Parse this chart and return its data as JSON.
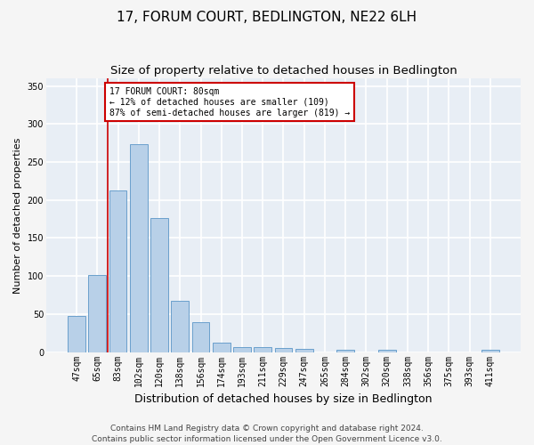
{
  "title": "17, FORUM COURT, BEDLINGTON, NE22 6LH",
  "subtitle": "Size of property relative to detached houses in Bedlington",
  "xlabel": "Distribution of detached houses by size in Bedlington",
  "ylabel": "Number of detached properties",
  "categories": [
    "47sqm",
    "65sqm",
    "83sqm",
    "102sqm",
    "120sqm",
    "138sqm",
    "156sqm",
    "174sqm",
    "193sqm",
    "211sqm",
    "229sqm",
    "247sqm",
    "265sqm",
    "284sqm",
    "302sqm",
    "320sqm",
    "338sqm",
    "356sqm",
    "375sqm",
    "393sqm",
    "411sqm"
  ],
  "values": [
    47,
    101,
    213,
    273,
    176,
    67,
    39,
    13,
    7,
    7,
    6,
    4,
    0,
    3,
    0,
    3,
    0,
    0,
    0,
    0,
    3
  ],
  "bar_color": "#b8d0e8",
  "bar_edge_color": "#6aa0cc",
  "property_line_label": "17 FORUM COURT: 80sqm",
  "annotation_line1": "← 12% of detached houses are smaller (109)",
  "annotation_line2": "87% of semi-detached houses are larger (819) →",
  "annotation_box_color": "#ffffff",
  "annotation_box_edge_color": "#cc0000",
  "property_line_color": "#cc0000",
  "ylim": [
    0,
    360
  ],
  "yticks": [
    0,
    50,
    100,
    150,
    200,
    250,
    300,
    350
  ],
  "footer1": "Contains HM Land Registry data © Crown copyright and database right 2024.",
  "footer2": "Contains public sector information licensed under the Open Government Licence v3.0.",
  "fig_background_color": "#f5f5f5",
  "plot_background_color": "#e8eef5",
  "grid_color": "#ffffff",
  "title_fontsize": 11,
  "subtitle_fontsize": 9.5,
  "xlabel_fontsize": 9,
  "ylabel_fontsize": 8,
  "tick_fontsize": 7,
  "footer_fontsize": 6.5,
  "annotation_fontsize": 7
}
